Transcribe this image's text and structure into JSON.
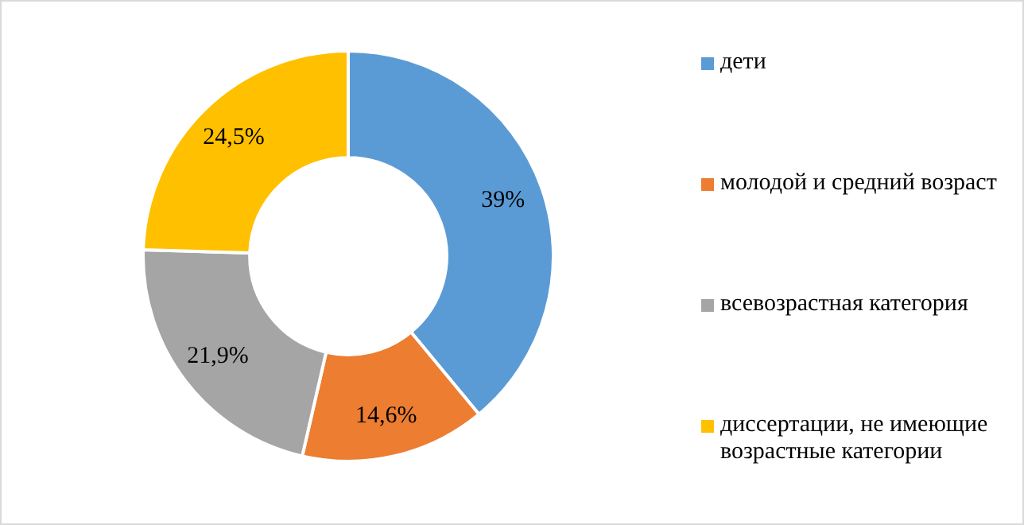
{
  "chart_data": {
    "type": "donut",
    "categories": [
      "дети",
      "молодой и средний возраст",
      "всевозрастная категория",
      "диссертации, не имеющие возрастные категории"
    ],
    "values": [
      39,
      14.6,
      21.9,
      24.5
    ],
    "colors": [
      "#5b9bd5",
      "#ed7d31",
      "#a5a5a5",
      "#ffc000"
    ],
    "value_labels": [
      "39%",
      "14,6%",
      "21,9%",
      "24,5%"
    ],
    "legend": "right"
  }
}
